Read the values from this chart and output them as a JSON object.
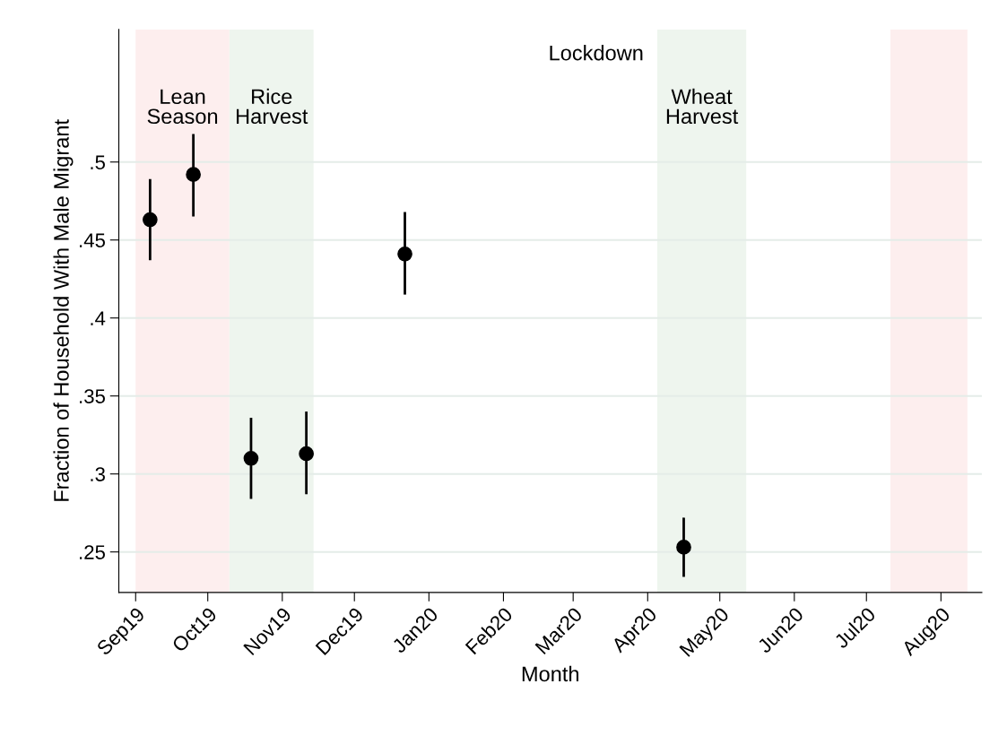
{
  "chart_data": {
    "type": "scatter",
    "xlabel": "Month",
    "ylabel": "Fraction of Household With Male Migrant",
    "x": [
      "2019-09-07",
      "2019-09-25",
      "2019-10-19",
      "2019-11-11",
      "2019-12-22",
      "2020-04-16"
    ],
    "series": [
      {
        "color": "#000000",
        "values": [
          0.463,
          0.492,
          0.31,
          0.313,
          0.441,
          0.253
        ],
        "errors": [
          [
            0.437,
            0.489
          ],
          [
            0.465,
            0.518
          ],
          [
            0.284,
            0.336
          ],
          [
            0.287,
            0.34
          ],
          [
            0.415,
            0.468
          ],
          [
            0.234,
            0.272
          ]
        ]
      }
    ],
    "marker": "circle",
    "grid": "y",
    "xlim": [
      "2019-08-25",
      "2020-08-18"
    ],
    "ylim": [
      0.224,
      0.585
    ],
    "xticks": [
      {
        "value": "2019-09-01",
        "label": "Sep19"
      },
      {
        "value": "2019-10-01",
        "label": "Oct19"
      },
      {
        "value": "2019-11-01",
        "label": "Nov19"
      },
      {
        "value": "2019-12-01",
        "label": "Dec19"
      },
      {
        "value": "2020-01-01",
        "label": "Jan20"
      },
      {
        "value": "2020-02-01",
        "label": "Feb20"
      },
      {
        "value": "2020-03-01",
        "label": "Mar20"
      },
      {
        "value": "2020-04-01",
        "label": "Apr20"
      },
      {
        "value": "2020-05-01",
        "label": "May20"
      },
      {
        "value": "2020-06-01",
        "label": "Jun20"
      },
      {
        "value": "2020-07-01",
        "label": "Jul20"
      },
      {
        "value": "2020-08-01",
        "label": "Aug20"
      }
    ],
    "yticks": [
      {
        "value": 0.25,
        "label": ".25"
      },
      {
        "value": 0.3,
        "label": ".3"
      },
      {
        "value": 0.35,
        "label": ".35"
      },
      {
        "value": 0.4,
        "label": ".4"
      },
      {
        "value": 0.45,
        "label": ".45"
      },
      {
        "value": 0.5,
        "label": ".5"
      }
    ],
    "bands": [
      {
        "axis": "x",
        "from": "2019-09-01",
        "to": "2019-10-10",
        "label": "Lean\nSeason",
        "color": "#fdeeee"
      },
      {
        "axis": "x",
        "from": "2019-10-10",
        "to": "2019-11-14",
        "label": "Rice\nHarvest",
        "color": "#eef5ee"
      },
      {
        "axis": "x",
        "from": "2020-04-05",
        "to": "2020-05-12",
        "label": "Wheat\nHarvest",
        "color": "#eef5ee"
      },
      {
        "axis": "x",
        "from": "2020-07-11",
        "to": "2020-08-12",
        "color": "#fdeeee"
      }
    ],
    "annotations": [
      "Lockdown"
    ]
  }
}
